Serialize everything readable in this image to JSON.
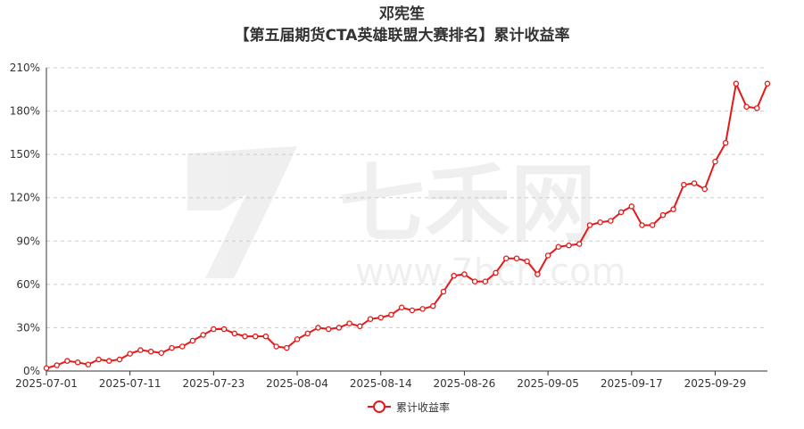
{
  "title_line1": "邓宪笙",
  "title_line2": "【第五届期货CTA英雄联盟大赛排名】累计收益率",
  "watermark": "七禾网 www.7hcn.com",
  "colors": {
    "line": "#e41a1a",
    "grid": "#cccccc",
    "text": "#333333"
  },
  "legend": {
    "label": "累计收益率",
    "icon": "line-with-circle-marker"
  },
  "chart_data": {
    "type": "line",
    "title": "邓宪笙\n【第五届期货CTA英雄联盟大赛排名】累计收益率",
    "xlabel": "",
    "ylabel": "",
    "ylim": [
      0,
      210
    ],
    "y_unit": "%",
    "y_ticks": [
      "0%",
      "30%",
      "60%",
      "90%",
      "120%",
      "150%",
      "180%",
      "210%"
    ],
    "y_tick_values": [
      0,
      30,
      60,
      90,
      120,
      150,
      180,
      210
    ],
    "x_tick_labels": [
      "2025-07-01",
      "2025-07-11",
      "2025-07-23",
      "2025-08-04",
      "2025-08-14",
      "2025-08-26",
      "2025-09-05",
      "2025-09-17",
      "2025-09-29"
    ],
    "grid": true,
    "legend_position": "bottom-center",
    "x": [
      "2025-07-01",
      "2025-07-02",
      "2025-07-03",
      "2025-07-04",
      "2025-07-07",
      "2025-07-08",
      "2025-07-09",
      "2025-07-10",
      "2025-07-11",
      "2025-07-14",
      "2025-07-15",
      "2025-07-16",
      "2025-07-17",
      "2025-07-18",
      "2025-07-21",
      "2025-07-22",
      "2025-07-23",
      "2025-07-24",
      "2025-07-25",
      "2025-07-28",
      "2025-07-29",
      "2025-07-30",
      "2025-07-31",
      "2025-08-01",
      "2025-08-04",
      "2025-08-05",
      "2025-08-06",
      "2025-08-07",
      "2025-08-08",
      "2025-08-11",
      "2025-08-12",
      "2025-08-13",
      "2025-08-14",
      "2025-08-15",
      "2025-08-18",
      "2025-08-19",
      "2025-08-20",
      "2025-08-21",
      "2025-08-22",
      "2025-08-25",
      "2025-08-26",
      "2025-08-27",
      "2025-08-28",
      "2025-08-29",
      "2025-09-01",
      "2025-09-02",
      "2025-09-03",
      "2025-09-04",
      "2025-09-05",
      "2025-09-08",
      "2025-09-09",
      "2025-09-10",
      "2025-09-11",
      "2025-09-12",
      "2025-09-15",
      "2025-09-16",
      "2025-09-17",
      "2025-09-18",
      "2025-09-19",
      "2025-09-22",
      "2025-09-23",
      "2025-09-24",
      "2025-09-25",
      "2025-09-26",
      "2025-09-29",
      "2025-09-30",
      "2025-10-09",
      "2025-10-10",
      "2025-10-13",
      "2025-10-14"
    ],
    "series": [
      {
        "name": "累计收益率",
        "values": [
          2,
          4,
          7,
          6,
          4.5,
          8,
          7,
          8,
          12,
          14.5,
          13.5,
          12.5,
          16,
          17,
          21,
          25,
          29,
          29,
          26,
          24,
          24,
          24,
          17,
          16,
          22,
          26,
          30,
          29,
          30,
          33,
          31,
          36,
          37,
          39,
          44,
          42,
          43,
          45,
          55,
          66,
          67,
          62,
          62,
          68,
          78,
          78,
          76,
          67,
          80,
          86,
          87,
          88,
          101,
          103,
          104,
          110,
          114,
          101,
          101,
          108,
          112,
          129,
          130,
          126,
          145,
          158,
          199,
          183,
          182,
          199
        ]
      }
    ]
  }
}
